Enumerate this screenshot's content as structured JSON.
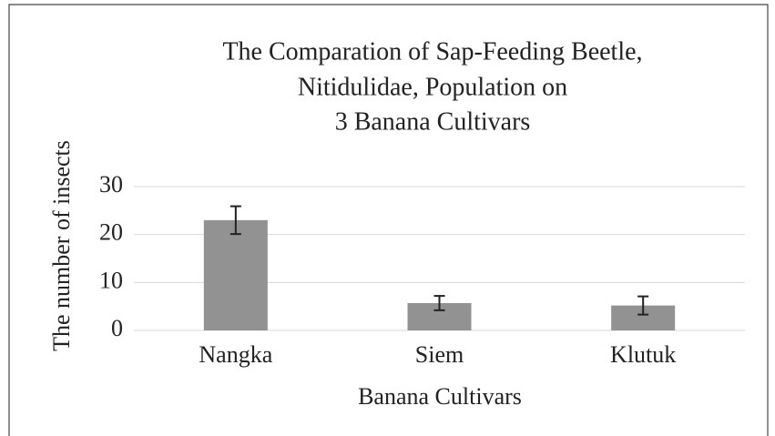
{
  "chart_data": {
    "type": "bar",
    "title": [
      "The Comparation of Sap-Feeding Beetle,",
      "Nitidulidae, Population on",
      "3 Banana Cultivars"
    ],
    "x_label": "Banana Cultivars",
    "y_label": "The number of insects",
    "categories": [
      "Nangka",
      "Siem",
      "Klutuk"
    ],
    "values": [
      23,
      5.7,
      5.2
    ],
    "errors": [
      2.9,
      1.5,
      1.9
    ],
    "color": "#929292",
    "ylim": [
      0,
      30
    ],
    "yticks": [
      0,
      10,
      20,
      30
    ],
    "grid": true
  }
}
